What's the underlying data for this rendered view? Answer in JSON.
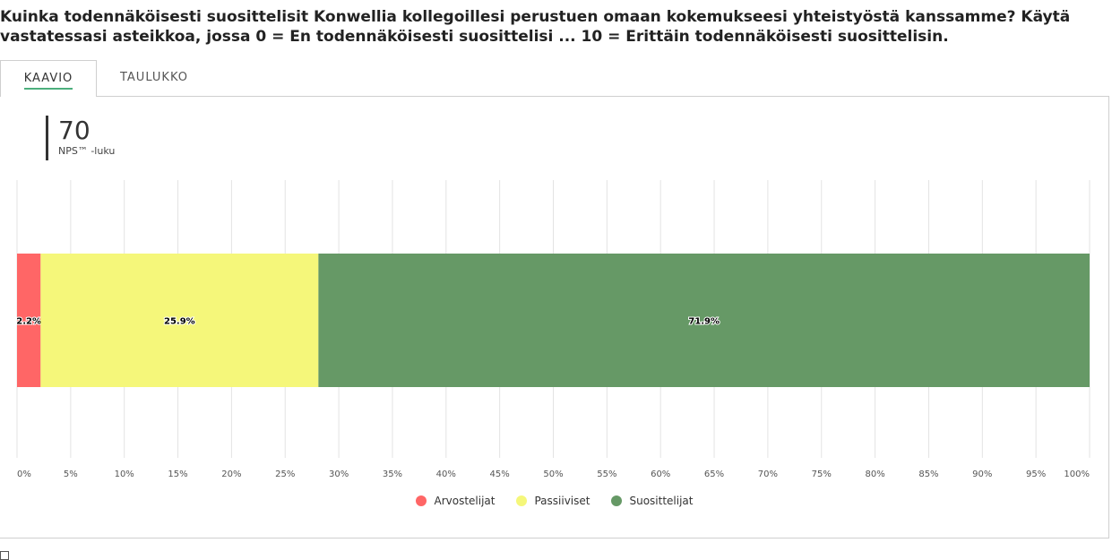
{
  "question": "Kuinka todennäköisesti suosittelisit Konwellia kollegoillesi perustuen omaan kokemukseesi yhteistyöstä kanssamme? Käytä vastatessasi asteikkoa, jossa 0 = En todennäköisesti suosittelisi ... 10 = Erittäin todennäköisesti suosittelisin.",
  "tabs": [
    {
      "label": "KAAVIO",
      "active": true
    },
    {
      "label": "TAULUKKO",
      "active": false
    }
  ],
  "nps": {
    "value": "70",
    "label": "NPS™ -luku"
  },
  "chart_data": {
    "type": "bar",
    "orientation": "horizontal",
    "stacked": true,
    "xlim": [
      0,
      100
    ],
    "x_ticks": [
      "0%",
      "5%",
      "10%",
      "15%",
      "20%",
      "25%",
      "30%",
      "35%",
      "40%",
      "45%",
      "50%",
      "55%",
      "60%",
      "65%",
      "70%",
      "75%",
      "80%",
      "85%",
      "90%",
      "95%",
      "100%"
    ],
    "grid": true,
    "legend_position": "bottom",
    "series": [
      {
        "name": "Arvostelijat",
        "value": 2.2,
        "label": "2.2%",
        "color": "#ff6666"
      },
      {
        "name": "Passiiviset",
        "value": 25.9,
        "label": "25.9%",
        "color": "#f5f77a"
      },
      {
        "name": "Suosittelijat",
        "value": 71.9,
        "label": "71.9%",
        "color": "#669966"
      }
    ]
  }
}
